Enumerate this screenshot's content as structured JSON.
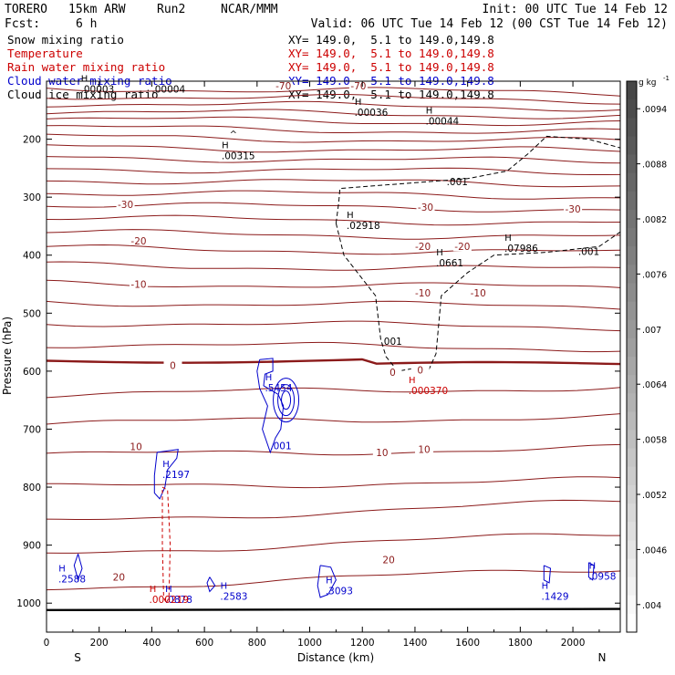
{
  "header": {
    "model": "TORERO",
    "resolution": "15km ARW",
    "run": "Run2",
    "org": "NCAR/MMM",
    "init": "Init: 00 UTC Tue 14 Feb 12",
    "fcst_label": "Fcst:",
    "fcst_value": "6 h",
    "valid": "Valid: 06 UTC Tue 14 Feb 12 (00 CST Tue 14 Feb 12)"
  },
  "fields": [
    {
      "name": "Snow mixing ratio",
      "xy": "XY= 149.0,  5.1 to 149.0,149.8",
      "color": "#000000"
    },
    {
      "name": "Temperature",
      "xy": "XY= 149.0,  5.1 to 149.0,149.8",
      "color": "#cc0000"
    },
    {
      "name": "Rain water mixing ratio",
      "xy": "XY= 149.0,  5.1 to 149.0,149.8",
      "color": "#cc0000"
    },
    {
      "name": "Cloud water mixing ratio",
      "xy": "XY= 149.0,  5.1 to 149.0,149.8",
      "color": "#0000cc"
    },
    {
      "name": "Cloud ice mixing ratio",
      "xy": "XY= 149.0,  5.1 to 149.0,149.8",
      "color": "#000000"
    }
  ],
  "chart_data": {
    "type": "cross-section contour",
    "xlabel": "Distance (km)",
    "ylabel": "Pressure (hPa)",
    "xlim": [
      0,
      2180
    ],
    "ylim": [
      1050,
      100
    ],
    "x_ticks": [
      "0",
      "200",
      "400",
      "600",
      "800",
      "1000",
      "1200",
      "1400",
      "1600",
      "1800",
      "2000"
    ],
    "y_ticks": [
      "200",
      "300",
      "400",
      "500",
      "600",
      "700",
      "800",
      "900",
      "1000"
    ],
    "x_end_labels": {
      "left": "S",
      "right": "N"
    },
    "colorbar": {
      "unit": "g kg",
      "unit_exp": "-1",
      "ticks": [
        ".004",
        ".0046",
        ".0052",
        ".0058",
        ".0064",
        ".007",
        ".0076",
        ".0082",
        ".0088",
        ".0094"
      ],
      "range": [
        0.0037,
        0.0097
      ]
    },
    "isotherm_labels": [
      {
        "text": "-30",
        "x": 300,
        "p": 312
      },
      {
        "text": "-30",
        "x": 1440,
        "p": 317
      },
      {
        "text": "-30",
        "x": 2000,
        "p": 320
      },
      {
        "text": "-20",
        "x": 350,
        "p": 375
      },
      {
        "text": "-20",
        "x": 1430,
        "p": 385
      },
      {
        "text": "-20",
        "x": 1580,
        "p": 385
      },
      {
        "text": "-10",
        "x": 350,
        "p": 450
      },
      {
        "text": "-10",
        "x": 1430,
        "p": 465
      },
      {
        "text": "-10",
        "x": 1640,
        "p": 465
      },
      {
        "text": "0",
        "x": 480,
        "p": 590
      },
      {
        "text": "0",
        "x": 1315,
        "p": 602
      },
      {
        "text": "0",
        "x": 1420,
        "p": 598
      },
      {
        "text": "10",
        "x": 340,
        "p": 730
      },
      {
        "text": "10",
        "x": 1275,
        "p": 740
      },
      {
        "text": "10",
        "x": 1435,
        "p": 735
      },
      {
        "text": "20",
        "x": 275,
        "p": 955
      },
      {
        "text": "20",
        "x": 1300,
        "p": 925
      },
      {
        "text": "-70",
        "x": 900,
        "p": 108
      },
      {
        "text": "-70",
        "x": 1185,
        "p": 108
      }
    ],
    "labels_black": [
      {
        "h": "H",
        "value": ".00003",
        "x": 130,
        "p": 110
      },
      {
        "h": "",
        "value": ".00004",
        "x": 400,
        "p": 110
      },
      {
        "h": "H",
        "value": ".00036",
        "x": 1170,
        "p": 150
      },
      {
        "h": "H",
        "value": ".00044",
        "x": 1440,
        "p": 165
      },
      {
        "h": "H",
        "value": ".00315",
        "x": 665,
        "p": 225
      },
      {
        "h": "H",
        "value": ".02918",
        "x": 1140,
        "p": 345
      },
      {
        "h": "H",
        "value": ".07986",
        "x": 1740,
        "p": 385
      },
      {
        "h": "H",
        "value": ".0661",
        "x": 1480,
        "p": 410
      },
      {
        "h": "",
        "value": ".001",
        "x": 1520,
        "p": 270
      },
      {
        "h": "",
        "value": ".001",
        "x": 2020,
        "p": 390
      },
      {
        "h": "",
        "value": ".001",
        "x": 1270,
        "p": 545
      }
    ],
    "labels_blue": [
      {
        "h": "H",
        "value": ".5454",
        "x": 830,
        "p": 625
      },
      {
        "h": "",
        "value": ".001",
        "x": 850,
        "p": 725
      },
      {
        "h": "H",
        "value": ".2197",
        "x": 440,
        "p": 775
      },
      {
        "h": "H",
        "value": ".2588",
        "x": 45,
        "p": 955
      },
      {
        "h": "H",
        "value": ".0878",
        "x": 450,
        "p": 990
      },
      {
        "h": "H",
        "value": ".2583",
        "x": 660,
        "p": 985
      },
      {
        "h": "H",
        "value": ".3093",
        "x": 1060,
        "p": 975
      },
      {
        "h": "H",
        "value": ".1429",
        "x": 1880,
        "p": 985
      },
      {
        "h": "H",
        "value": ".0958",
        "x": 2060,
        "p": 950
      }
    ],
    "labels_red": [
      {
        "h": "H",
        "value": ".000370",
        "x": 1375,
        "p": 630
      },
      {
        "h": "H",
        "value": ".000219",
        "x": 390,
        "p": 990
      }
    ],
    "misc_marks": [
      {
        "text": "^",
        "x": 710,
        "p": 197
      }
    ]
  }
}
